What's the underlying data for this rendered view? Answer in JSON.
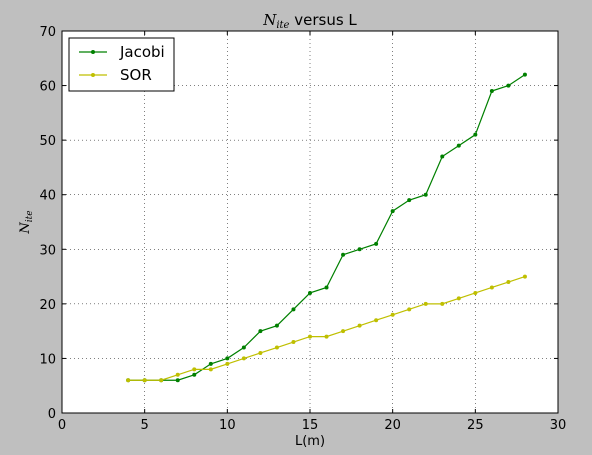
{
  "chart_data": {
    "type": "line",
    "title_math": "N",
    "title_sub": "ite",
    "title_rest": " versus L",
    "xlabel": "L(m)",
    "ylabel_math": "N",
    "ylabel_sub": "ite",
    "xlim": [
      0,
      30
    ],
    "ylim": [
      0,
      70
    ],
    "xticks": [
      0,
      5,
      10,
      15,
      20,
      25,
      30
    ],
    "yticks": [
      0,
      10,
      20,
      30,
      40,
      50,
      60,
      70
    ],
    "grid": true,
    "legend_position": "top-left",
    "series": [
      {
        "name": "Jacobi",
        "color": "#008000",
        "x": [
          4,
          5,
          6,
          7,
          8,
          9,
          10,
          11,
          12,
          13,
          14,
          15,
          16,
          17,
          18,
          19,
          20,
          21,
          22,
          23,
          24,
          25,
          26,
          27,
          28
        ],
        "y": [
          6,
          6,
          6,
          6,
          7,
          9,
          10,
          12,
          15,
          16,
          19,
          22,
          23,
          29,
          30,
          31,
          37,
          39,
          40,
          47,
          49,
          51,
          59,
          60,
          62
        ]
      },
      {
        "name": "SOR",
        "color": "#bfbf00",
        "x": [
          4,
          5,
          6,
          7,
          8,
          9,
          10,
          11,
          12,
          13,
          14,
          15,
          16,
          17,
          18,
          19,
          20,
          21,
          22,
          23,
          24,
          25,
          26,
          27,
          28
        ],
        "y": [
          6,
          6,
          6,
          7,
          8,
          8,
          9,
          10,
          11,
          12,
          13,
          14,
          14,
          15,
          16,
          17,
          18,
          19,
          20,
          20,
          21,
          22,
          23,
          24,
          25
        ]
      }
    ]
  }
}
